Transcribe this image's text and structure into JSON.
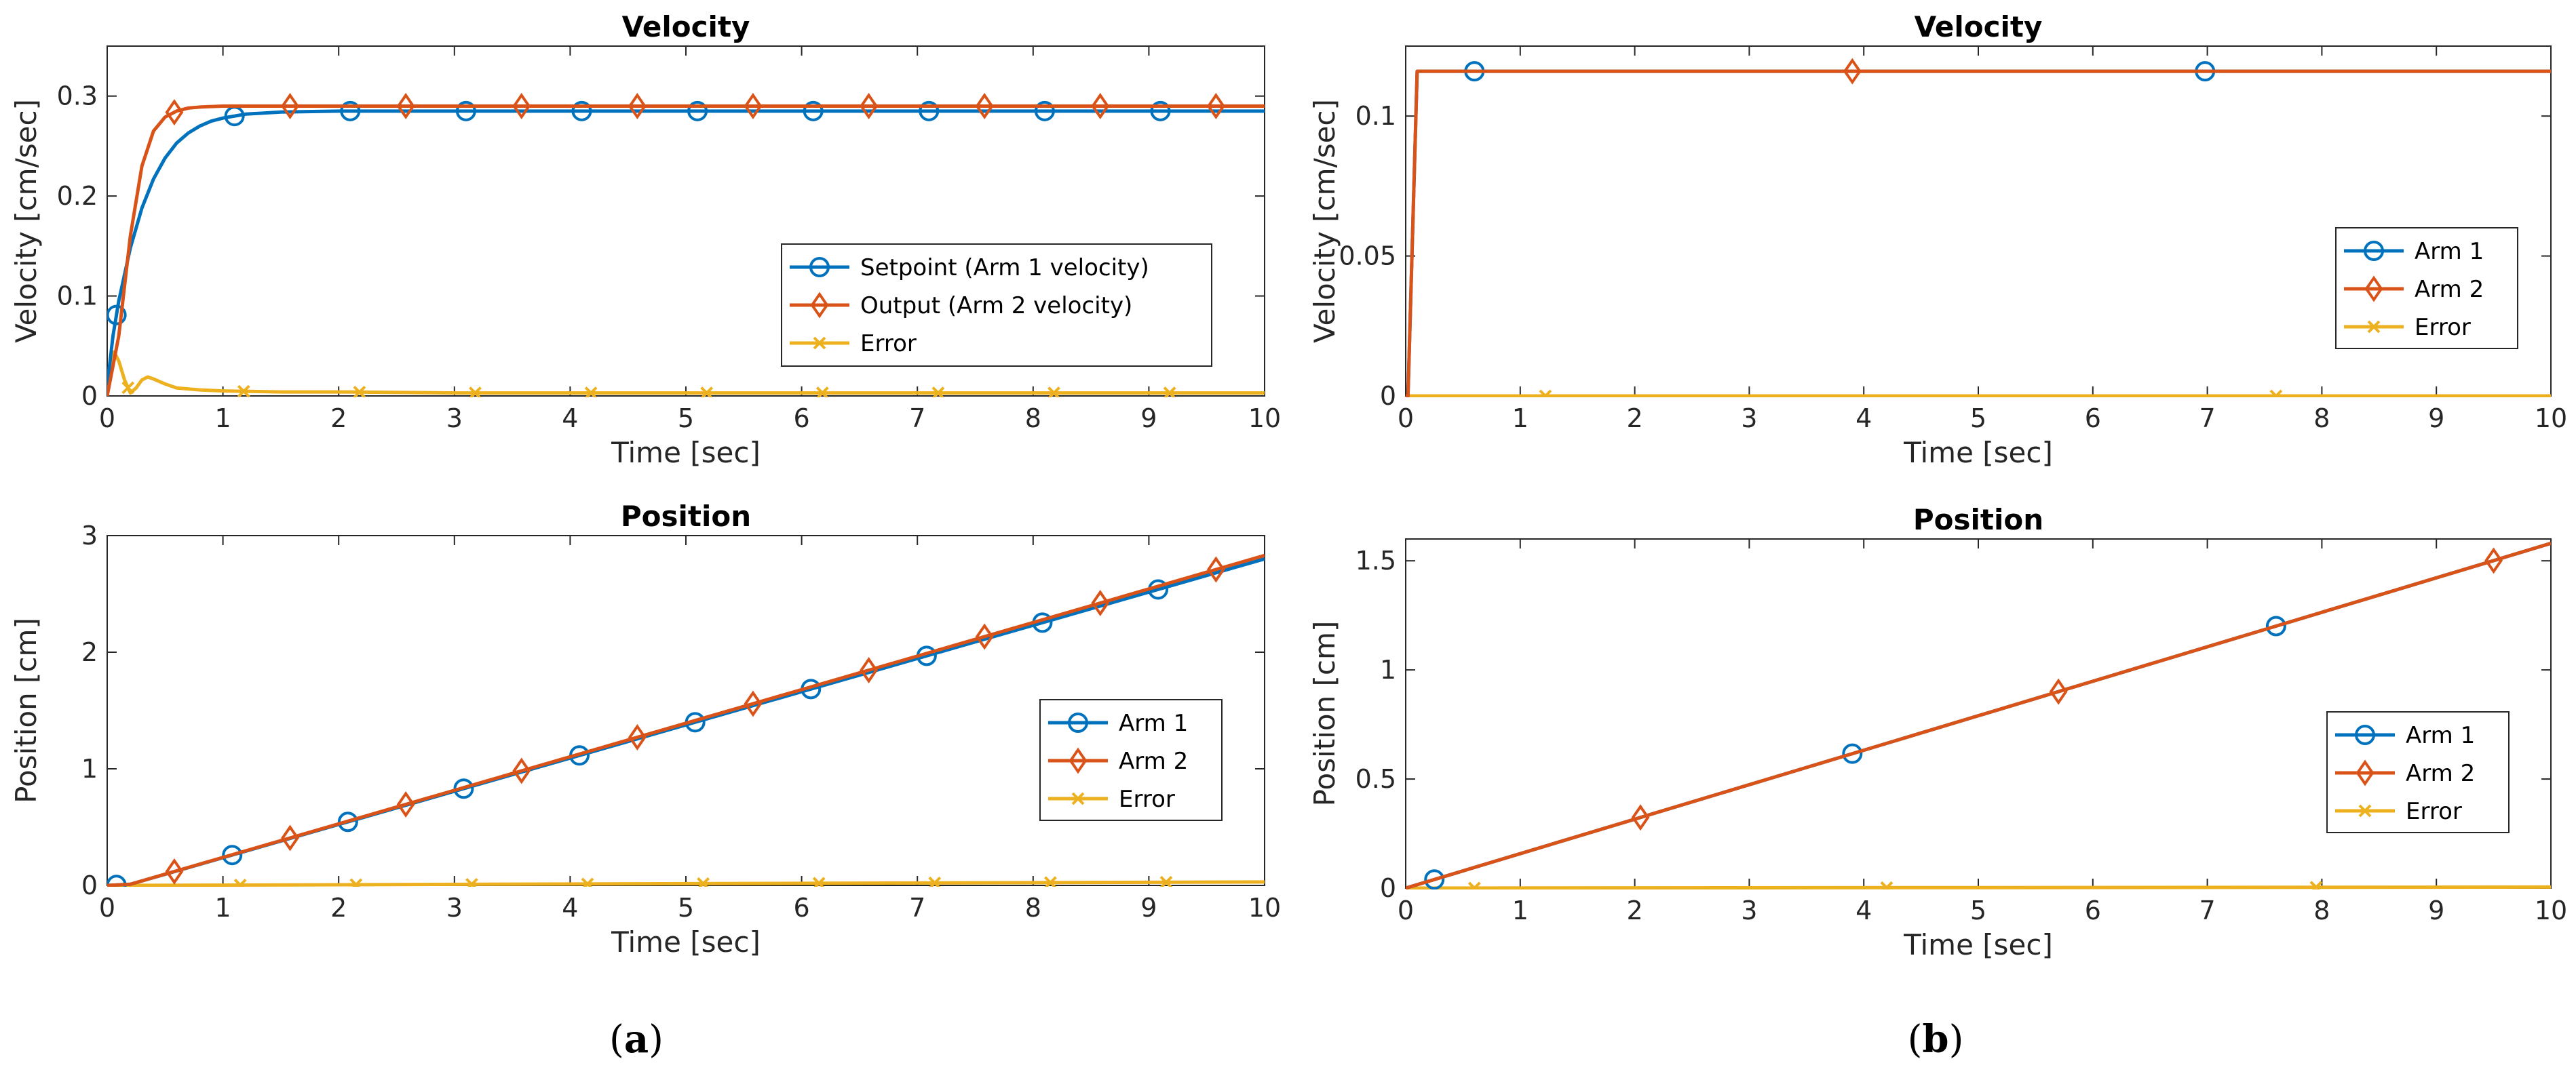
{
  "colors": {
    "blue": "#0072BD",
    "orange": "#D95319",
    "yellow": "#EDB120"
  },
  "panel_labels": [
    {
      "open": "(",
      "letter": "a",
      "close": ")"
    },
    {
      "open": "(",
      "letter": "b",
      "close": ")"
    }
  ],
  "chart_data": [
    {
      "type": "line",
      "title": "Velocity",
      "xlabel": "Time [sec]",
      "ylabel": "Velocity [cm/sec]",
      "xlim": [
        0,
        10
      ],
      "ylim": [
        0,
        0.35
      ],
      "xticks": [
        0,
        1,
        2,
        3,
        4,
        5,
        6,
        7,
        8,
        9,
        10
      ],
      "xtick_labels": [
        "0",
        "1",
        "2",
        "3",
        "4",
        "5",
        "6",
        "7",
        "8",
        "9",
        "10"
      ],
      "yticks": [
        0,
        0.1,
        0.2,
        0.3
      ],
      "ytick_labels": [
        "0",
        "0.1",
        "0.2",
        "0.3"
      ],
      "legend_position": "middle-right",
      "series": [
        {
          "name": "Setpoint (Arm 1 velocity)",
          "color": "#0072BD",
          "marker": "circle",
          "x": [
            0,
            0.05,
            0.1,
            0.2,
            0.3,
            0.4,
            0.5,
            0.6,
            0.7,
            0.8,
            0.9,
            1.0,
            1.2,
            1.5,
            2,
            3,
            4,
            5,
            6,
            7,
            8,
            9,
            10
          ],
          "y": [
            0.01,
            0.06,
            0.095,
            0.148,
            0.188,
            0.217,
            0.238,
            0.253,
            0.263,
            0.27,
            0.275,
            0.278,
            0.282,
            0.284,
            0.285,
            0.285,
            0.285,
            0.285,
            0.285,
            0.285,
            0.285,
            0.285,
            0.285
          ],
          "marker_x": [
            0.08,
            1.1,
            2.1,
            3.1,
            4.1,
            5.1,
            6.1,
            7.1,
            8.1,
            9.1
          ]
        },
        {
          "name": "Output (Arm 2 velocity)",
          "color": "#D95319",
          "marker": "diamond",
          "x": [
            0,
            0.1,
            0.2,
            0.3,
            0.4,
            0.5,
            0.6,
            0.7,
            0.8,
            1.0,
            1.2,
            1.5,
            2,
            3,
            4,
            5,
            6,
            7,
            8,
            9,
            10
          ],
          "y": [
            0,
            0.06,
            0.16,
            0.23,
            0.265,
            0.279,
            0.285,
            0.288,
            0.289,
            0.29,
            0.29,
            0.29,
            0.29,
            0.29,
            0.29,
            0.29,
            0.29,
            0.29,
            0.29,
            0.29,
            0.29
          ],
          "marker_x": [
            0.58,
            1.58,
            2.58,
            3.58,
            4.58,
            5.58,
            6.58,
            7.58,
            8.58,
            9.58
          ]
        },
        {
          "name": "Error",
          "color": "#EDB120",
          "marker": "x",
          "x": [
            0,
            0.03,
            0.06,
            0.1,
            0.15,
            0.2,
            0.25,
            0.3,
            0.35,
            0.4,
            0.5,
            0.6,
            0.8,
            1.0,
            1.5,
            2,
            3,
            4,
            5,
            6,
            7,
            8,
            9,
            10
          ],
          "y": [
            0.005,
            0.035,
            0.044,
            0.035,
            0.016,
            0.003,
            0.008,
            0.016,
            0.019,
            0.017,
            0.012,
            0.008,
            0.006,
            0.005,
            0.004,
            0.004,
            0.003,
            0.003,
            0.003,
            0.003,
            0.003,
            0.003,
            0.003,
            0.003
          ],
          "marker_x": [
            0.18,
            1.18,
            2.18,
            3.18,
            4.18,
            5.18,
            6.18,
            7.18,
            8.18,
            9.18
          ]
        }
      ]
    },
    {
      "type": "line",
      "title": "Position",
      "xlabel": "Time [sec]",
      "ylabel": "Position [cm]",
      "xlim": [
        0,
        10
      ],
      "ylim": [
        0,
        3
      ],
      "xticks": [
        0,
        1,
        2,
        3,
        4,
        5,
        6,
        7,
        8,
        9,
        10
      ],
      "xtick_labels": [
        "0",
        "1",
        "2",
        "3",
        "4",
        "5",
        "6",
        "7",
        "8",
        "9",
        "10"
      ],
      "yticks": [
        0,
        1,
        2,
        3
      ],
      "ytick_labels": [
        "0",
        "1",
        "2",
        "3"
      ],
      "legend_position": "middle-right",
      "series": [
        {
          "name": "Arm 1",
          "color": "#0072BD",
          "marker": "circle",
          "x": [
            0,
            0.2,
            10
          ],
          "y": [
            0,
            0.01,
            2.8
          ],
          "marker_x": [
            0.08,
            1.08,
            2.08,
            3.08,
            4.08,
            5.08,
            6.08,
            7.08,
            8.08,
            9.08
          ]
        },
        {
          "name": "Arm 2",
          "color": "#D95319",
          "marker": "diamond",
          "x": [
            0,
            0.2,
            10
          ],
          "y": [
            0,
            0.01,
            2.83
          ],
          "marker_x": [
            0.58,
            1.58,
            2.58,
            3.58,
            4.58,
            5.58,
            6.58,
            7.58,
            8.58,
            9.58
          ]
        },
        {
          "name": "Error",
          "color": "#EDB120",
          "marker": "x",
          "x": [
            0,
            10
          ],
          "y": [
            0,
            0.03
          ],
          "marker_x": [
            1.15,
            2.15,
            3.15,
            4.15,
            5.15,
            6.15,
            7.15,
            8.15,
            9.15
          ]
        }
      ]
    },
    {
      "type": "line",
      "title": "Velocity",
      "xlabel": "Time [sec]",
      "ylabel": "Velocity [cm/sec]",
      "xlim": [
        0,
        10
      ],
      "ylim": [
        0,
        0.125
      ],
      "xticks": [
        0,
        1,
        2,
        3,
        4,
        5,
        6,
        7,
        8,
        9,
        10
      ],
      "xtick_labels": [
        "0",
        "1",
        "2",
        "3",
        "4",
        "5",
        "6",
        "7",
        "8",
        "9",
        "10"
      ],
      "yticks": [
        0,
        0.05,
        0.1
      ],
      "ytick_labels": [
        "0",
        "0.05",
        "0.1"
      ],
      "legend_position": "middle-right",
      "series": [
        {
          "name": "Arm 1",
          "color": "#0072BD",
          "marker": "circle",
          "x": [
            0,
            0.02,
            0.1,
            10
          ],
          "y": [
            0,
            0,
            0.116,
            0.116
          ],
          "marker_x": [
            0.6,
            6.98
          ]
        },
        {
          "name": "Arm 2",
          "color": "#D95319",
          "marker": "diamond",
          "x": [
            0,
            0.02,
            0.1,
            10
          ],
          "y": [
            0,
            0,
            0.116,
            0.116
          ],
          "marker_x": [
            3.9
          ]
        },
        {
          "name": "Error",
          "color": "#EDB120",
          "marker": "x",
          "x": [
            0,
            10
          ],
          "y": [
            0,
            0
          ],
          "marker_x": [
            1.22,
            7.6
          ]
        }
      ]
    },
    {
      "type": "line",
      "title": "Position",
      "xlabel": "Time [sec]",
      "ylabel": "Position [cm]",
      "xlim": [
        0,
        10
      ],
      "ylim": [
        0,
        1.6
      ],
      "xticks": [
        0,
        1,
        2,
        3,
        4,
        5,
        6,
        7,
        8,
        9,
        10
      ],
      "xtick_labels": [
        "0",
        "1",
        "2",
        "3",
        "4",
        "5",
        "6",
        "7",
        "8",
        "9",
        "10"
      ],
      "yticks": [
        0,
        0.5,
        1,
        1.5
      ],
      "ytick_labels": [
        "0",
        "0.5",
        "1",
        "1.5"
      ],
      "legend_position": "middle-right",
      "series": [
        {
          "name": "Arm 1",
          "color": "#0072BD",
          "marker": "circle",
          "x": [
            0,
            10
          ],
          "y": [
            0,
            1.58
          ],
          "marker_x": [
            0.25,
            3.9,
            7.6
          ]
        },
        {
          "name": "Arm 2",
          "color": "#D95319",
          "marker": "diamond",
          "x": [
            0,
            10
          ],
          "y": [
            0,
            1.58
          ],
          "marker_x": [
            2.05,
            5.7,
            9.5
          ]
        },
        {
          "name": "Error",
          "color": "#EDB120",
          "marker": "x",
          "x": [
            0,
            10
          ],
          "y": [
            0,
            0.005
          ],
          "marker_x": [
            0.6,
            4.2,
            7.95
          ]
        }
      ]
    }
  ]
}
